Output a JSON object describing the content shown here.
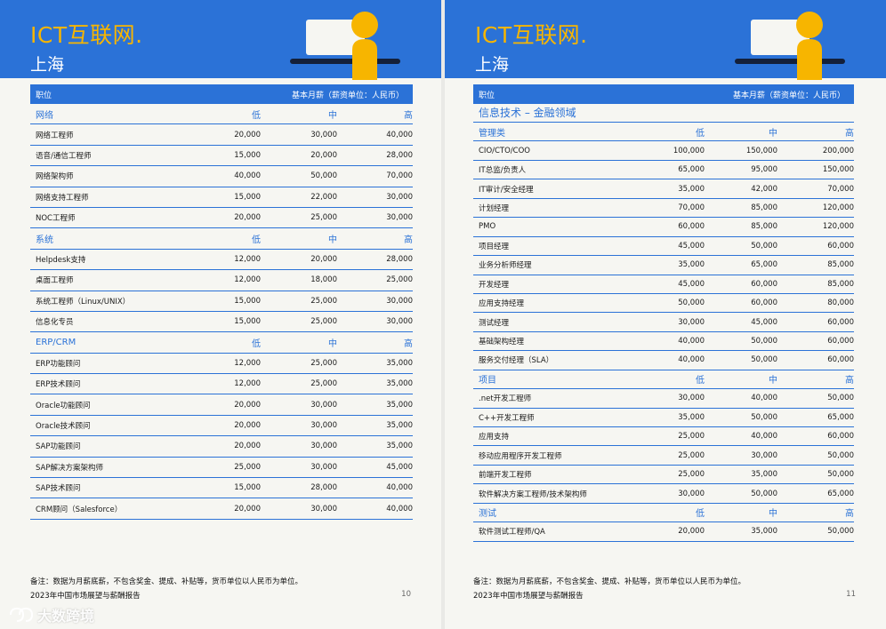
{
  "colors": {
    "brand_blue": "#2b72d7",
    "brand_yellow": "#f7b500"
  },
  "pages": [
    {
      "brand": "ICT互联网.",
      "city": "上海",
      "header": {
        "col_position": "职位",
        "col_salary": "基本月薪（薪资单位：人民币）"
      },
      "note": "备注：数据为月薪底薪，不包含奖金、提成、补贴等，货币单位以人民币为单位。",
      "footer": "2023年中国市场展望与薪酬报告",
      "page_number": "10",
      "sections": [
        {
          "title": "网络",
          "low": "低",
          "mid": "中",
          "high": "高",
          "rows": [
            [
              "网络工程师",
              "20,000",
              "30,000",
              "40,000"
            ],
            [
              "语音/通信工程师",
              "15,000",
              "20,000",
              "28,000"
            ],
            [
              "网络架构师",
              "40,000",
              "50,000",
              "70,000"
            ],
            [
              "网络支持工程师",
              "15,000",
              "22,000",
              "30,000"
            ],
            [
              "NOC工程师",
              "20,000",
              "25,000",
              "30,000"
            ]
          ]
        },
        {
          "title": "系统",
          "low": "低",
          "mid": "中",
          "high": "高",
          "rows": [
            [
              "Helpdesk支持",
              "12,000",
              "20,000",
              "28,000"
            ],
            [
              "桌面工程师",
              "12,000",
              "18,000",
              "25,000"
            ],
            [
              "系统工程师（Linux/UNIX）",
              "15,000",
              "25,000",
              "30,000"
            ],
            [
              "信息化专员",
              "15,000",
              "25,000",
              "30,000"
            ]
          ]
        },
        {
          "title": "ERP/CRM",
          "low": "低",
          "mid": "中",
          "high": "高",
          "rows": [
            [
              "ERP功能顾问",
              "12,000",
              "25,000",
              "35,000"
            ],
            [
              "ERP技术顾问",
              "12,000",
              "25,000",
              "35,000"
            ],
            [
              "Oracle功能顾问",
              "20,000",
              "30,000",
              "35,000"
            ],
            [
              "Oracle技术顾问",
              "20,000",
              "30,000",
              "35,000"
            ],
            [
              "SAP功能顾问",
              "20,000",
              "30,000",
              "35,000"
            ],
            [
              "SAP解决方案架构师",
              "25,000",
              "30,000",
              "45,000"
            ],
            [
              "SAP技术顾问",
              "15,000",
              "28,000",
              "40,000"
            ],
            [
              "CRM顾问（Salesforce）",
              "20,000",
              "30,000",
              "40,000"
            ]
          ]
        }
      ]
    },
    {
      "brand": "ICT互联网.",
      "city": "上海",
      "header": {
        "col_position": "职位",
        "col_salary": "基本月薪（薪资单位：人民币）"
      },
      "domain_title": "信息技术 – 金融领域",
      "note": "备注：数据为月薪底薪，不包含奖金、提成、补贴等，货币单位以人民币为单位。",
      "footer": "2023年中国市场展望与薪酬报告",
      "page_number": "11",
      "sections": [
        {
          "title": "管理类",
          "low": "低",
          "mid": "中",
          "high": "高",
          "rows": [
            [
              "CIO/CTO/COO",
              "100,000",
              "150,000",
              "200,000"
            ],
            [
              "IT总监/负责人",
              "65,000",
              "95,000",
              "150,000"
            ],
            [
              "IT审计/安全经理",
              "35,000",
              "42,000",
              "70,000"
            ],
            [
              "计划经理",
              "70,000",
              "85,000",
              "120,000"
            ],
            [
              "PMO",
              "60,000",
              "85,000",
              "120,000"
            ],
            [
              "项目经理",
              "45,000",
              "50,000",
              "60,000"
            ],
            [
              "业务分析师经理",
              "35,000",
              "65,000",
              "85,000"
            ],
            [
              "开发经理",
              "45,000",
              "60,000",
              "85,000"
            ],
            [
              "应用支持经理",
              "50,000",
              "60,000",
              "80,000"
            ],
            [
              "测试经理",
              "30,000",
              "45,000",
              "60,000"
            ],
            [
              "基础架构经理",
              "40,000",
              "50,000",
              "60,000"
            ],
            [
              "服务交付经理（SLA）",
              "40,000",
              "50,000",
              "60,000"
            ]
          ]
        },
        {
          "title": "项目",
          "low": "低",
          "mid": "中",
          "high": "高",
          "rows": [
            [
              ".net开发工程师",
              "30,000",
              "40,000",
              "50,000"
            ],
            [
              "C++开发工程师",
              "35,000",
              "50,000",
              "65,000"
            ],
            [
              "应用支持",
              "25,000",
              "40,000",
              "60,000"
            ],
            [
              "移动应用程序开发工程师",
              "25,000",
              "30,000",
              "50,000"
            ],
            [
              "前端开发工程师",
              "25,000",
              "35,000",
              "50,000"
            ],
            [
              "软件解决方案工程师/技术架构师",
              "30,000",
              "50,000",
              "65,000"
            ]
          ]
        },
        {
          "title": "测试",
          "low": "低",
          "mid": "中",
          "high": "高",
          "rows": [
            [
              "软件测试工程师/QA",
              "20,000",
              "35,000",
              "50,000"
            ]
          ]
        }
      ]
    }
  ],
  "watermark": {
    "text": "大数跨境",
    "icon": "brand-logo-icon"
  }
}
